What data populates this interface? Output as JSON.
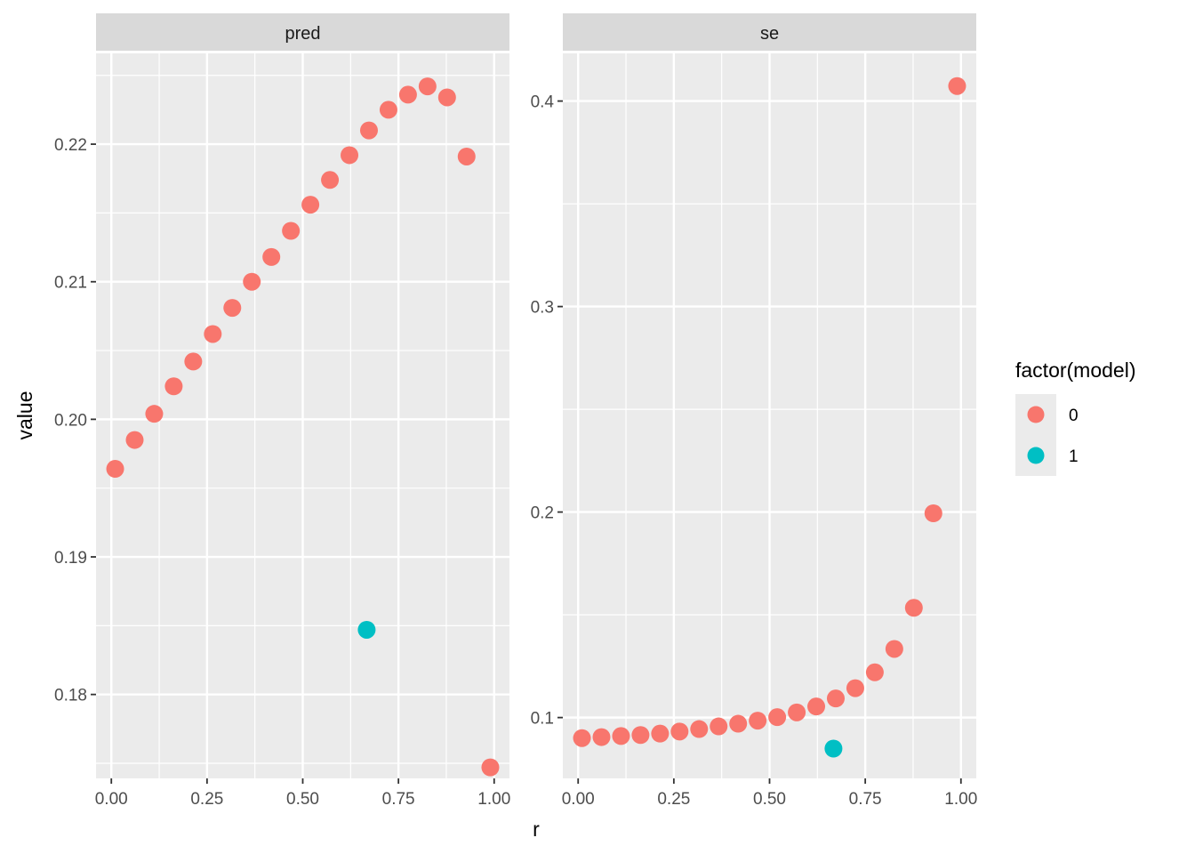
{
  "chart_data": {
    "type": "scatter",
    "xlabel": "r",
    "ylabel": "value",
    "grid": true,
    "legend": {
      "title": "factor(model)",
      "placement": "right",
      "entries": [
        {
          "label": "0",
          "color": "#F8766D"
        },
        {
          "label": "1",
          "color": "#00BFC4"
        }
      ]
    },
    "panels": [
      {
        "label": "pred",
        "xlim": [
          -0.04,
          1.04
        ],
        "ylim": [
          0.1739,
          0.2266
        ],
        "x_ticks": [
          0,
          0.25,
          0.5,
          0.75,
          1
        ],
        "x_tick_labels": [
          "0.00",
          "0.25",
          "0.50",
          "0.75",
          "1.00"
        ],
        "y_ticks": [
          0.18,
          0.19,
          0.2,
          0.21,
          0.22
        ],
        "y_tick_labels": [
          "0.18",
          "0.19",
          "0.20",
          "0.21",
          "0.22"
        ],
        "series": [
          {
            "name": "0",
            "color": "#F8766D",
            "x": [
              0.01,
              0.061,
              0.112,
              0.163,
              0.214,
              0.265,
              0.316,
              0.367,
              0.418,
              0.469,
              0.52,
              0.571,
              0.622,
              0.673,
              0.724,
              0.775,
              0.826,
              0.877,
              0.928,
              0.99
            ],
            "y": [
              0.1964,
              0.1985,
              0.2004,
              0.2024,
              0.2042,
              0.2062,
              0.2081,
              0.21,
              0.2118,
              0.2137,
              0.2156,
              0.2174,
              0.2192,
              0.221,
              0.2225,
              0.2236,
              0.2242,
              0.2234,
              0.2191,
              0.1747
            ]
          },
          {
            "name": "1",
            "color": "#00BFC4",
            "x": [
              0.667
            ],
            "y": [
              0.1847
            ]
          }
        ]
      },
      {
        "label": "se",
        "xlim": [
          -0.04,
          1.04
        ],
        "ylim": [
          0.0704,
          0.4232
        ],
        "x_ticks": [
          0,
          0.25,
          0.5,
          0.75,
          1
        ],
        "x_tick_labels": [
          "0.00",
          "0.25",
          "0.50",
          "0.75",
          "1.00"
        ],
        "y_ticks": [
          0.1,
          0.2,
          0.3,
          0.4
        ],
        "y_tick_labels": [
          "0.1",
          "0.2",
          "0.3",
          "0.4"
        ],
        "series": [
          {
            "name": "0",
            "color": "#F8766D",
            "x": [
              0.01,
              0.061,
              0.112,
              0.163,
              0.214,
              0.265,
              0.316,
              0.367,
              0.418,
              0.469,
              0.52,
              0.571,
              0.622,
              0.673,
              0.724,
              0.775,
              0.826,
              0.877,
              0.928,
              0.99
            ],
            "y": [
              0.09,
              0.0905,
              0.091,
              0.0915,
              0.0922,
              0.0932,
              0.0944,
              0.0957,
              0.097,
              0.0985,
              0.1002,
              0.1025,
              0.1054,
              0.1093,
              0.1143,
              0.122,
              0.1334,
              0.1534,
              0.1994,
              0.4073
            ]
          },
          {
            "name": "1",
            "color": "#00BFC4",
            "x": [
              0.667
            ],
            "y": [
              0.0849
            ]
          }
        ]
      }
    ]
  }
}
